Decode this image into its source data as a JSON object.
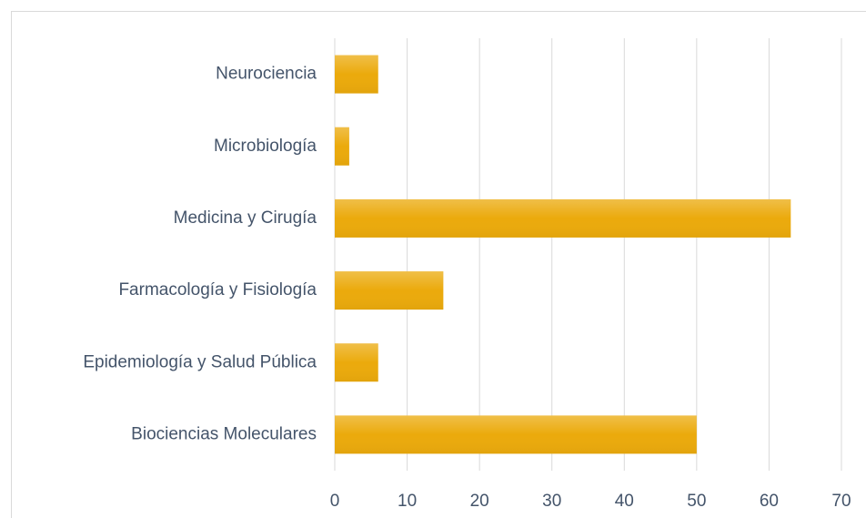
{
  "chart_data": {
    "type": "bar",
    "orientation": "horizontal",
    "categories": [
      "Neurociencia",
      "Microbiología",
      "Medicina y Cirugía",
      "Farmacología y Fisiología",
      "Epidemiología y Salud Pública",
      "Biociencias Moleculares"
    ],
    "values": [
      6,
      2,
      63,
      15,
      6,
      50
    ],
    "color": "#ebaa0c",
    "xlim": [
      0,
      70
    ],
    "xticks": [
      0,
      10,
      20,
      30,
      40,
      50,
      60,
      70
    ],
    "grid": true
  }
}
